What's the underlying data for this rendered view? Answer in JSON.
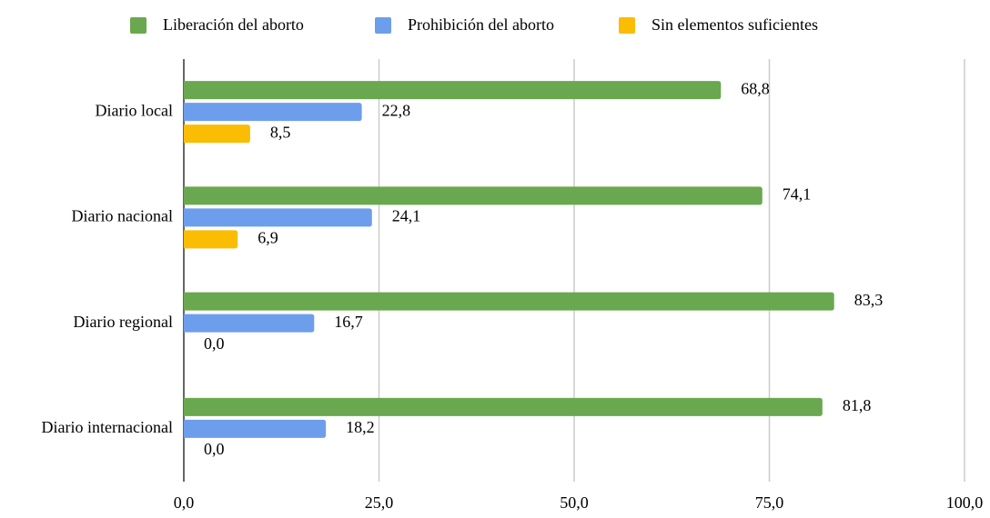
{
  "chart_data": {
    "type": "hbar",
    "categories": [
      "Diario local",
      "Diario nacional",
      "Diario regional",
      "Diario internacional"
    ],
    "series": [
      {
        "name": "Liberación del aborto",
        "color": "#6aa84f",
        "values": [
          68.8,
          74.1,
          83.3,
          81.8
        ],
        "value_labels": [
          "68,8",
          "74,1",
          "83,3",
          "81,8"
        ]
      },
      {
        "name": "Prohibición del aborto",
        "color": "#6d9eeb",
        "values": [
          22.8,
          24.1,
          16.7,
          18.2
        ],
        "value_labels": [
          "22,8",
          "24,1",
          "16,7",
          "18,2"
        ]
      },
      {
        "name": "Sin elementos suficientes",
        "color": "#fbbc04",
        "values": [
          8.5,
          6.9,
          0,
          0
        ],
        "value_labels": [
          "8,5",
          "6,9",
          "0,0",
          "0,0"
        ]
      }
    ],
    "xlim": [
      0,
      100
    ],
    "xticks": [
      {
        "value": 0,
        "label": "0,0"
      },
      {
        "value": 25,
        "label": "25,0"
      },
      {
        "value": 50,
        "label": "50,0"
      },
      {
        "value": 75,
        "label": "75,0"
      },
      {
        "value": 100,
        "label": "100,0"
      }
    ],
    "grid": true,
    "legend": "top"
  }
}
